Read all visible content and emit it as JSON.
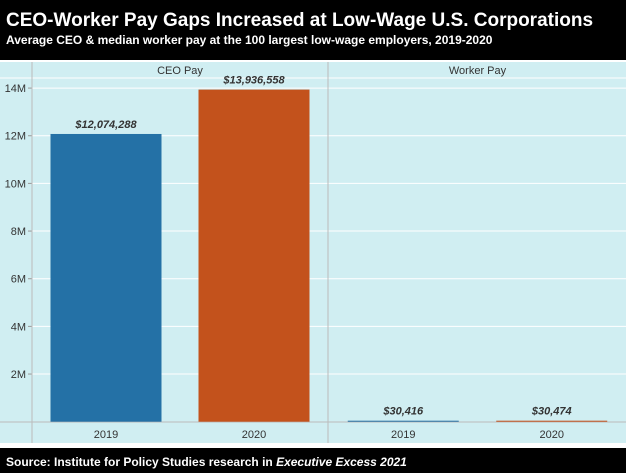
{
  "chart_data": {
    "type": "bar",
    "title": "CEO-Worker Pay Gaps Increased at Low-Wage U.S. Corporations",
    "subtitle": "Average CEO & median worker pay at the 100 largest low-wage employers, 2019-2020",
    "source_prefix": "Source: Institute for Policy Studies research in ",
    "source_italic": "Executive Excess 2021",
    "ylim": [
      0,
      14400000
    ],
    "yticks": [
      2000000,
      4000000,
      6000000,
      8000000,
      10000000,
      12000000,
      14000000
    ],
    "ytick_labels": [
      "2M",
      "4M",
      "6M",
      "8M",
      "10M",
      "12M",
      "14M"
    ],
    "grid": true,
    "panels": [
      {
        "name": "CEO Pay",
        "categories": [
          "2019",
          "2020"
        ],
        "values": [
          12074288,
          13936558
        ],
        "labels": [
          "$12,074,288",
          "$13,936,558"
        ]
      },
      {
        "name": "Worker Pay",
        "categories": [
          "2019",
          "2020"
        ],
        "values": [
          30416,
          30474
        ],
        "labels": [
          "$30,416",
          "$30,474"
        ]
      }
    ],
    "colors": {
      "2019": "#2471a6",
      "2020": "#c3521c",
      "background": "#d0eef2",
      "header": "#000000"
    }
  }
}
